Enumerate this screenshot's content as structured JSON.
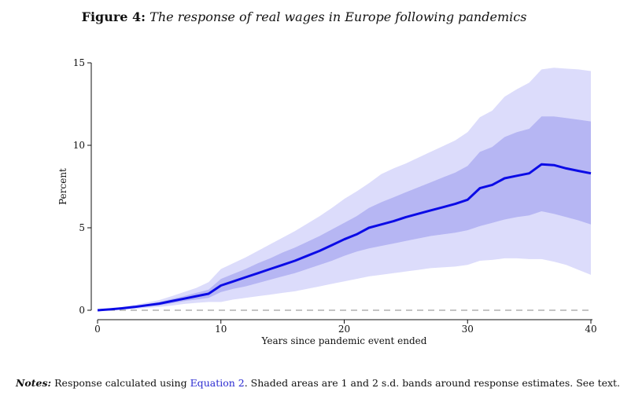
{
  "figure": {
    "label": "Figure 4:",
    "caption": "The response of real wages in Europe following pandemics"
  },
  "notes": {
    "label": "Notes:",
    "text_before": " Response calculated using ",
    "link": "Equation 2",
    "text_after": ". Shaded areas are 1 and 2 s.d. bands around response estimates. See text."
  },
  "colors": {
    "line": "#0b0be6",
    "band1": "#b6b6f3",
    "band2": "#dcdcfb",
    "zero_line": "#888888"
  },
  "chart_data": {
    "type": "area",
    "title": "",
    "xlabel": "Years since pandemic event ended",
    "ylabel": "Percent",
    "xlim": [
      0,
      40
    ],
    "ylim": [
      0,
      15
    ],
    "xticks": [
      0,
      10,
      20,
      30,
      40
    ],
    "yticks": [
      0,
      5,
      10,
      15
    ],
    "grid": false,
    "reference_line": {
      "y": 0,
      "style": "dashed"
    },
    "x": [
      0,
      1,
      2,
      3,
      4,
      5,
      6,
      7,
      8,
      9,
      10,
      11,
      12,
      13,
      14,
      15,
      16,
      17,
      18,
      19,
      20,
      21,
      22,
      23,
      24,
      25,
      26,
      27,
      28,
      29,
      30,
      31,
      32,
      33,
      34,
      35,
      36,
      37,
      38,
      39,
      40
    ],
    "series": [
      {
        "values": [
          0.0,
          0.05,
          0.12,
          0.2,
          0.3,
          0.4,
          0.55,
          0.7,
          0.85,
          1.0,
          1.5,
          1.75,
          2.0,
          2.25,
          2.5,
          2.75,
          3.0,
          3.3,
          3.6,
          3.95,
          4.3,
          4.6,
          5.0,
          5.2,
          5.4,
          5.65,
          5.85,
          6.05,
          6.25,
          6.45,
          6.7,
          7.4,
          7.6,
          8.0,
          8.15,
          8.3,
          8.85,
          8.8,
          8.6,
          8.45,
          8.3
        ]
      }
    ],
    "band_1sd": {
      "lower": [
        0.0,
        0.03,
        0.08,
        0.14,
        0.22,
        0.3,
        0.42,
        0.55,
        0.65,
        0.75,
        1.1,
        1.3,
        1.45,
        1.65,
        1.85,
        2.05,
        2.25,
        2.5,
        2.75,
        3.0,
        3.3,
        3.55,
        3.75,
        3.9,
        4.05,
        4.2,
        4.35,
        4.5,
        4.6,
        4.7,
        4.85,
        5.1,
        5.3,
        5.5,
        5.65,
        5.75,
        6.0,
        5.85,
        5.65,
        5.45,
        5.2
      ],
      "upper": [
        0.0,
        0.07,
        0.16,
        0.26,
        0.38,
        0.5,
        0.68,
        0.85,
        1.05,
        1.25,
        1.9,
        2.2,
        2.5,
        2.85,
        3.15,
        3.5,
        3.8,
        4.15,
        4.5,
        4.9,
        5.3,
        5.7,
        6.2,
        6.55,
        6.85,
        7.15,
        7.45,
        7.75,
        8.05,
        8.35,
        8.75,
        9.6,
        9.9,
        10.5,
        10.8,
        11.0,
        11.75,
        11.75,
        11.65,
        11.55,
        11.45
      ]
    },
    "band_2sd": {
      "lower": [
        0.0,
        0.01,
        0.04,
        0.08,
        0.14,
        0.2,
        0.28,
        0.38,
        0.45,
        0.5,
        0.5,
        0.65,
        0.75,
        0.85,
        0.95,
        1.05,
        1.15,
        1.3,
        1.45,
        1.6,
        1.75,
        1.9,
        2.05,
        2.15,
        2.25,
        2.35,
        2.45,
        2.55,
        2.6,
        2.65,
        2.75,
        3.0,
        3.05,
        3.15,
        3.15,
        3.1,
        3.1,
        2.95,
        2.75,
        2.45,
        2.15
      ],
      "upper": [
        0.0,
        0.09,
        0.2,
        0.32,
        0.46,
        0.62,
        0.85,
        1.1,
        1.35,
        1.7,
        2.5,
        2.85,
        3.2,
        3.6,
        4.0,
        4.4,
        4.8,
        5.25,
        5.7,
        6.2,
        6.75,
        7.2,
        7.7,
        8.25,
        8.6,
        8.9,
        9.25,
        9.6,
        9.95,
        10.3,
        10.8,
        11.7,
        12.1,
        12.95,
        13.4,
        13.8,
        14.6,
        14.7,
        14.65,
        14.6,
        14.5
      ]
    }
  }
}
